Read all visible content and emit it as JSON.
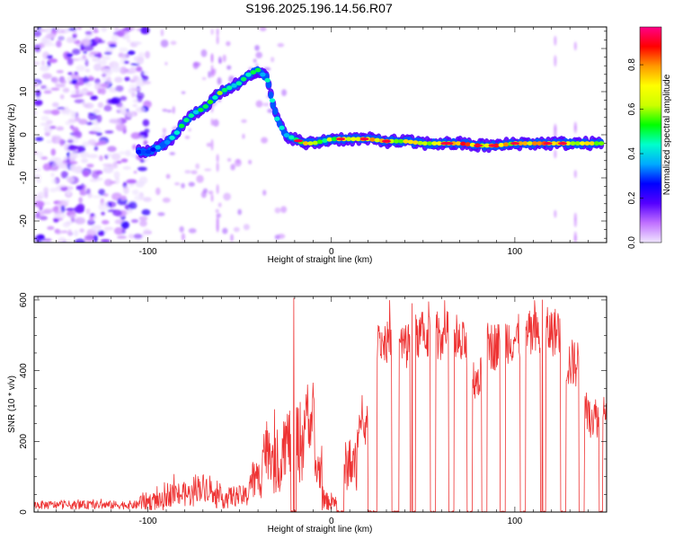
{
  "page": {
    "title": "S196.2025.196.14.56.R07"
  },
  "colors": {
    "snr_line": "#ee3333",
    "axis": "#000000",
    "background": "#ffffff"
  },
  "chart_data": [
    {
      "type": "heatmap",
      "title": "S196.2025.196.14.56.R07",
      "xlabel": "Height of straight line (km)",
      "ylabel": "Frequency (Hz)",
      "xlim": [
        -162,
        150
      ],
      "ylim": [
        -25,
        25
      ],
      "xticks": [
        -100,
        0,
        100
      ],
      "yticks": [
        -20,
        -10,
        0,
        10,
        20
      ],
      "colorbar": {
        "label": "Normalized spectral amplitude",
        "range": [
          0,
          0.97
        ],
        "ticks": [
          "0.0",
          "0.2",
          "0.4",
          "0.6",
          "0.8"
        ],
        "tick_values": [
          0.0,
          0.2,
          0.4,
          0.6,
          0.8
        ],
        "colormap": [
          "#f0e6ff",
          "#c070ff",
          "#5500ff",
          "#0000ff",
          "#00aaff",
          "#00ffcc",
          "#00ff00",
          "#ccff00",
          "#ffff00",
          "#ff9900",
          "#ff0000",
          "#ff0088"
        ]
      },
      "tone_track": {
        "x": [
          -105,
          -100,
          -95,
          -90,
          -85,
          -80,
          -75,
          -70,
          -65,
          -60,
          -55,
          -50,
          -45,
          -40,
          -35,
          -30,
          -25,
          -20,
          -15,
          -10,
          -5,
          0,
          10,
          20,
          30,
          40,
          50,
          60,
          70,
          80,
          90,
          100,
          110,
          120,
          130,
          140,
          148
        ],
        "y": [
          -4,
          -4,
          -3,
          -2,
          0,
          3,
          5,
          6,
          8,
          10,
          11,
          12,
          14,
          15,
          13,
          4,
          0,
          -1,
          -2,
          -2,
          -1.5,
          -1,
          -1,
          -1,
          -1.5,
          -1.5,
          -2,
          -2,
          -2,
          -2.5,
          -2.5,
          -2,
          -2,
          -2,
          -2,
          -2,
          -2
        ],
        "amplitude": [
          0.3,
          0.35,
          0.4,
          0.45,
          0.5,
          0.55,
          0.55,
          0.5,
          0.55,
          0.6,
          0.55,
          0.5,
          0.55,
          0.5,
          0.45,
          0.5,
          0.45,
          0.6,
          0.8,
          0.7,
          0.6,
          0.7,
          0.8,
          0.85,
          0.8,
          0.75,
          0.8,
          0.85,
          0.9,
          0.9,
          0.85,
          0.8,
          0.8,
          0.85,
          0.8,
          0.75,
          0.7
        ]
      }
    },
    {
      "type": "line",
      "xlabel": "Height of straight line (km)",
      "ylabel": "SNR (10 * v/v)",
      "xlim": [
        -162,
        150
      ],
      "ylim": [
        0,
        610
      ],
      "xticks": [
        -100,
        0,
        100
      ],
      "yticks": [
        0,
        200,
        400,
        600
      ],
      "series": [
        {
          "color": "#ee3333",
          "segments": [
            {
              "x0": -162,
              "x1": -105,
              "level": 20,
              "noise": 12
            },
            {
              "x0": -105,
              "x1": -90,
              "level": 30,
              "noise": 25
            },
            {
              "x0": -90,
              "x1": -75,
              "level": 50,
              "noise": 35
            },
            {
              "x0": -75,
              "x1": -65,
              "level": 70,
              "noise": 40
            },
            {
              "x0": -65,
              "x1": -55,
              "level": 40,
              "noise": 30
            },
            {
              "x0": -55,
              "x1": -45,
              "level": 45,
              "noise": 30
            },
            {
              "x0": -45,
              "x1": -38,
              "level": 90,
              "noise": 60
            },
            {
              "x0": -38,
              "x1": -32,
              "level": 180,
              "noise": 90
            },
            {
              "x0": -32,
              "x1": -27,
              "level": 130,
              "noise": 80
            },
            {
              "x0": -27,
              "x1": -22,
              "level": 200,
              "noise": 100
            },
            {
              "x0": -22,
              "x1": -19,
              "level": 0,
              "noise": 4
            },
            {
              "x0": -19,
              "x1": -15,
              "level": 200,
              "noise": 120
            },
            {
              "x0": -15,
              "x1": -9,
              "level": 260,
              "noise": 80
            },
            {
              "x0": -9,
              "x1": -5,
              "level": 120,
              "noise": 60
            },
            {
              "x0": -5,
              "x1": 3,
              "level": 30,
              "noise": 25
            },
            {
              "x0": 3,
              "x1": 7,
              "level": 0,
              "noise": 5
            },
            {
              "x0": 7,
              "x1": 14,
              "level": 130,
              "noise": 70
            },
            {
              "x0": 14,
              "x1": 20,
              "level": 240,
              "noise": 60
            },
            {
              "x0": 20,
              "x1": 25,
              "level": 0,
              "noise": 5
            },
            {
              "x0": 25,
              "x1": 33,
              "level": 480,
              "noise": 60
            },
            {
              "x0": 33,
              "x1": 37,
              "level": 0,
              "noise": 4
            },
            {
              "x0": 37,
              "x1": 43,
              "level": 470,
              "noise": 70
            },
            {
              "x0": 43,
              "x1": 46,
              "level": 0,
              "noise": 4
            },
            {
              "x0": 46,
              "x1": 54,
              "level": 500,
              "noise": 70
            },
            {
              "x0": 54,
              "x1": 57,
              "level": 0,
              "noise": 4
            },
            {
              "x0": 57,
              "x1": 64,
              "level": 500,
              "noise": 70
            },
            {
              "x0": 64,
              "x1": 67,
              "level": 0,
              "noise": 4
            },
            {
              "x0": 67,
              "x1": 74,
              "level": 470,
              "noise": 70
            },
            {
              "x0": 74,
              "x1": 77,
              "level": 0,
              "noise": 4
            },
            {
              "x0": 77,
              "x1": 82,
              "level": 380,
              "noise": 60
            },
            {
              "x0": 82,
              "x1": 85,
              "level": 0,
              "noise": 4
            },
            {
              "x0": 85,
              "x1": 92,
              "level": 470,
              "noise": 70
            },
            {
              "x0": 92,
              "x1": 95,
              "level": 0,
              "noise": 4
            },
            {
              "x0": 95,
              "x1": 103,
              "level": 490,
              "noise": 70
            },
            {
              "x0": 103,
              "x1": 106,
              "level": 0,
              "noise": 4
            },
            {
              "x0": 106,
              "x1": 114,
              "level": 500,
              "noise": 70
            },
            {
              "x0": 114,
              "x1": 117,
              "level": 0,
              "noise": 4
            },
            {
              "x0": 117,
              "x1": 125,
              "level": 510,
              "noise": 70
            },
            {
              "x0": 125,
              "x1": 128,
              "level": 0,
              "noise": 4
            },
            {
              "x0": 128,
              "x1": 135,
              "level": 420,
              "noise": 70
            },
            {
              "x0": 135,
              "x1": 138,
              "level": 0,
              "noise": 4
            },
            {
              "x0": 138,
              "x1": 146,
              "level": 270,
              "noise": 60
            },
            {
              "x0": 146,
              "x1": 148,
              "level": 0,
              "noise": 4
            },
            {
              "x0": 148,
              "x1": 150,
              "level": 300,
              "noise": 40
            }
          ],
          "peaks": [
            {
              "x": -20.5,
              "y": 605
            },
            {
              "x": -31,
              "y": 290
            },
            {
              "x": -13,
              "y": 360
            },
            {
              "x": 44,
              "y": 590
            },
            {
              "x": 115,
              "y": 600
            },
            {
              "x": 53,
              "y": 595
            }
          ]
        }
      ]
    }
  ]
}
